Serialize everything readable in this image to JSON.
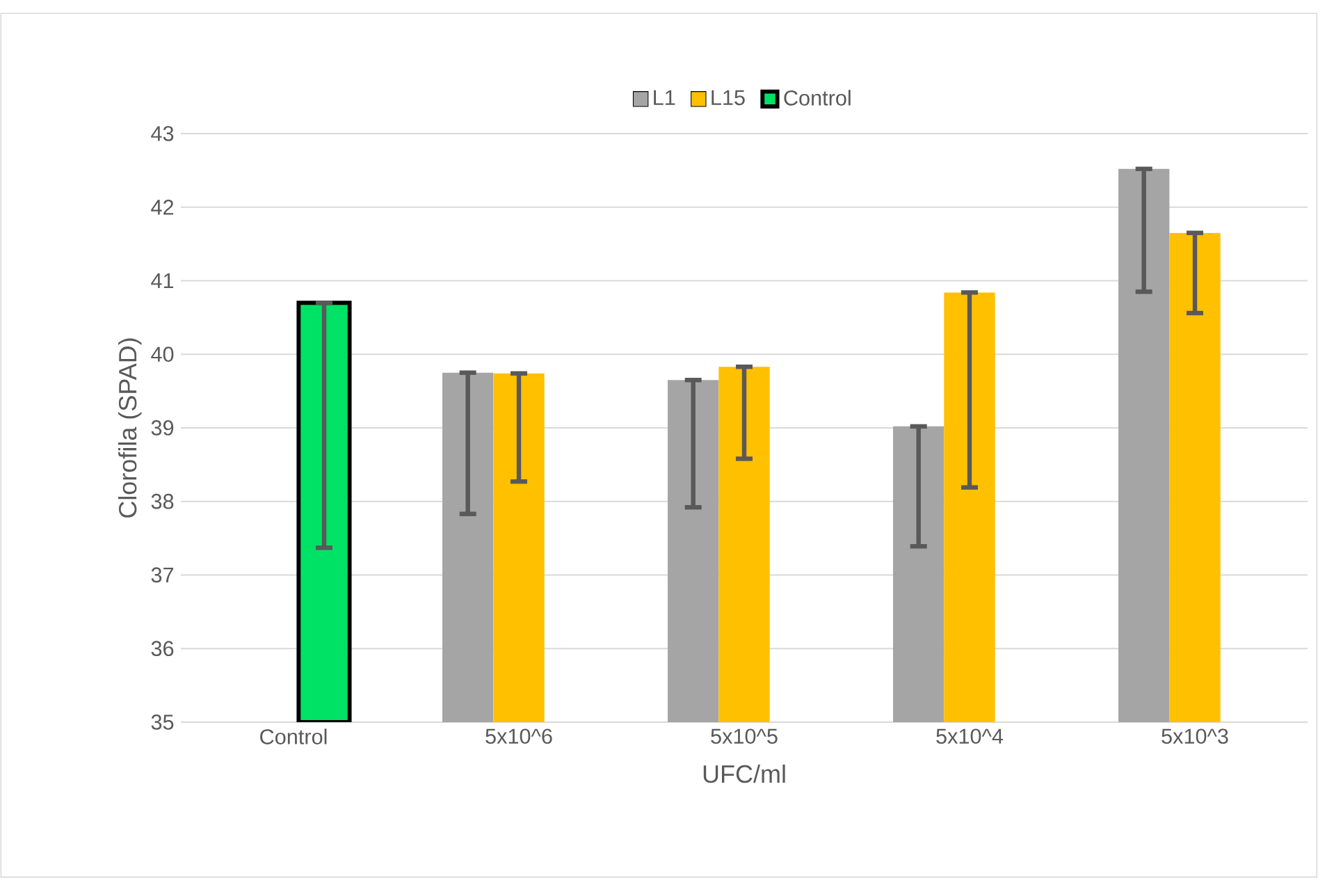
{
  "chart_data": {
    "type": "bar",
    "xlabel": "UFC/ml",
    "ylabel": "Clorofila (SPAD)",
    "categories": [
      "Control",
      "5x10^6",
      "5x10^5",
      "5x10^4",
      "5x10^3"
    ],
    "series": [
      {
        "name": "L1",
        "color": "#a5a5a5",
        "values": [
          null,
          39.75,
          39.65,
          39.02,
          42.52
        ],
        "errors": [
          null,
          [
            37.83,
            39.75
          ],
          [
            37.92,
            39.65
          ],
          [
            37.39,
            39.02
          ],
          [
            40.85,
            42.52
          ]
        ]
      },
      {
        "name": "L15",
        "color": "#ffc000",
        "values": [
          null,
          39.74,
          39.83,
          40.84,
          41.65
        ],
        "errors": [
          null,
          [
            38.27,
            39.74
          ],
          [
            38.58,
            39.83
          ],
          [
            38.19,
            40.84
          ],
          [
            40.56,
            41.65
          ]
        ]
      },
      {
        "name": "Control",
        "color": "#00e266",
        "values": [
          40.7,
          null,
          null,
          null,
          null
        ],
        "errors": [
          [
            37.37,
            40.7
          ],
          null,
          null,
          null,
          null
        ]
      }
    ],
    "ylim": [
      35,
      43
    ],
    "yticks": [
      35,
      36,
      37,
      38,
      39,
      40,
      41,
      42,
      43
    ],
    "grid": "y",
    "legend": "top"
  }
}
